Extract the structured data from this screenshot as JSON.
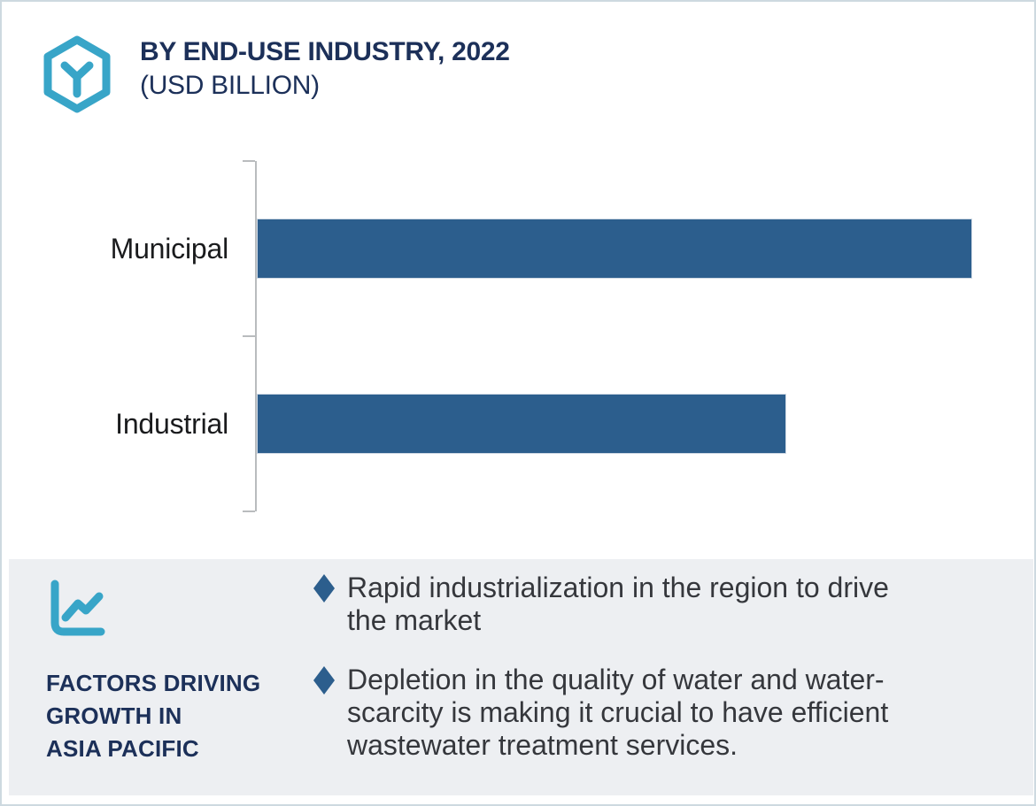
{
  "header": {
    "title": "BY END-USE INDUSTRY, 2022",
    "subtitle": "(USD BILLION)"
  },
  "chart_data": {
    "type": "bar",
    "orientation": "horizontal",
    "title": "BY END-USE INDUSTRY, 2022 (USD BILLION)",
    "categories": [
      "Municipal",
      "Industrial"
    ],
    "values": [
      100,
      74
    ],
    "values_are_relative_estimates": true,
    "xlim": [
      0,
      103
    ],
    "xlabel": "",
    "ylabel": "",
    "grid": false,
    "legend": "none",
    "bar_color": "#2c5e8d",
    "axis_color": "#b9bcbe"
  },
  "panel": {
    "heading": "FACTORS DRIVING\nGROWTH IN\nASIA PACIFIC",
    "bullets": [
      "Rapid industrialization in the region to drive the market",
      "Depletion in the quality of water and water-scarcity is making it crucial to have efficient wastewater treatment services."
    ]
  },
  "icons": {
    "brand": "hexagon-y-icon",
    "panel": "trend-line-chart-icon",
    "bullet": "diamond-icon"
  },
  "colors": {
    "accent_teal": "#38a5c8",
    "navy": "#1c3059",
    "bar_blue": "#2c5e8d",
    "panel_bg": "#edeff2",
    "bullet_text": "#35373c"
  }
}
